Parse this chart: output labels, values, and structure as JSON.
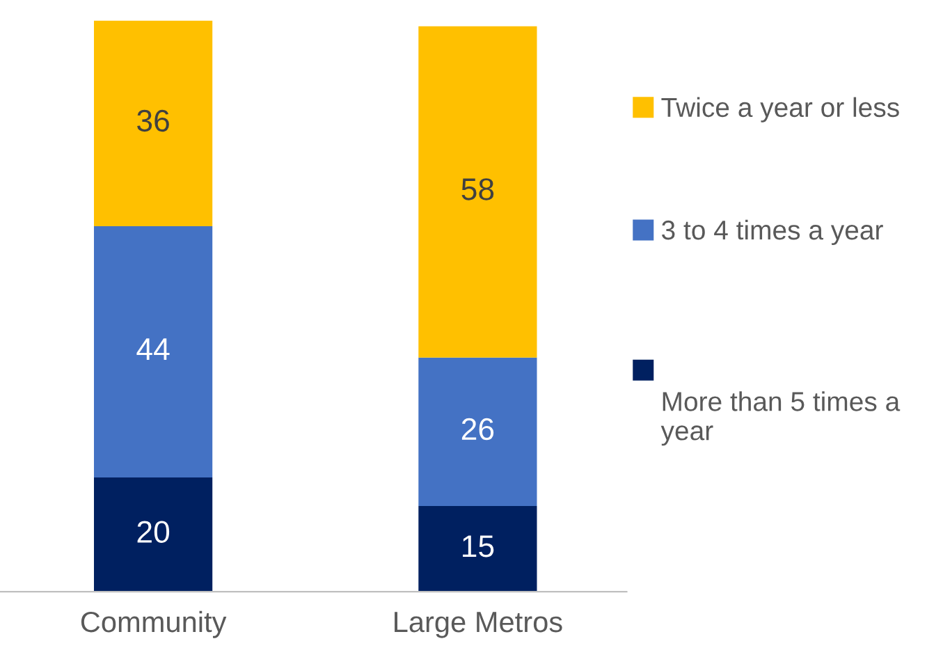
{
  "chart_data": {
    "type": "bar",
    "stacked": true,
    "categories": [
      "Community",
      "Large Metros"
    ],
    "series": [
      {
        "name": "More than 5 times a year",
        "color": "#002060",
        "values": [
          20,
          15
        ]
      },
      {
        "name": "3 to 4 times a year",
        "color": "#4472c4",
        "values": [
          44,
          26
        ]
      },
      {
        "name": "Twice a year or less",
        "color": "#ffc000",
        "values": [
          36,
          58
        ]
      }
    ],
    "ylim": [
      0,
      100
    ],
    "tick_labels": "x",
    "data_labels": true,
    "legend": "right",
    "grid": false
  }
}
